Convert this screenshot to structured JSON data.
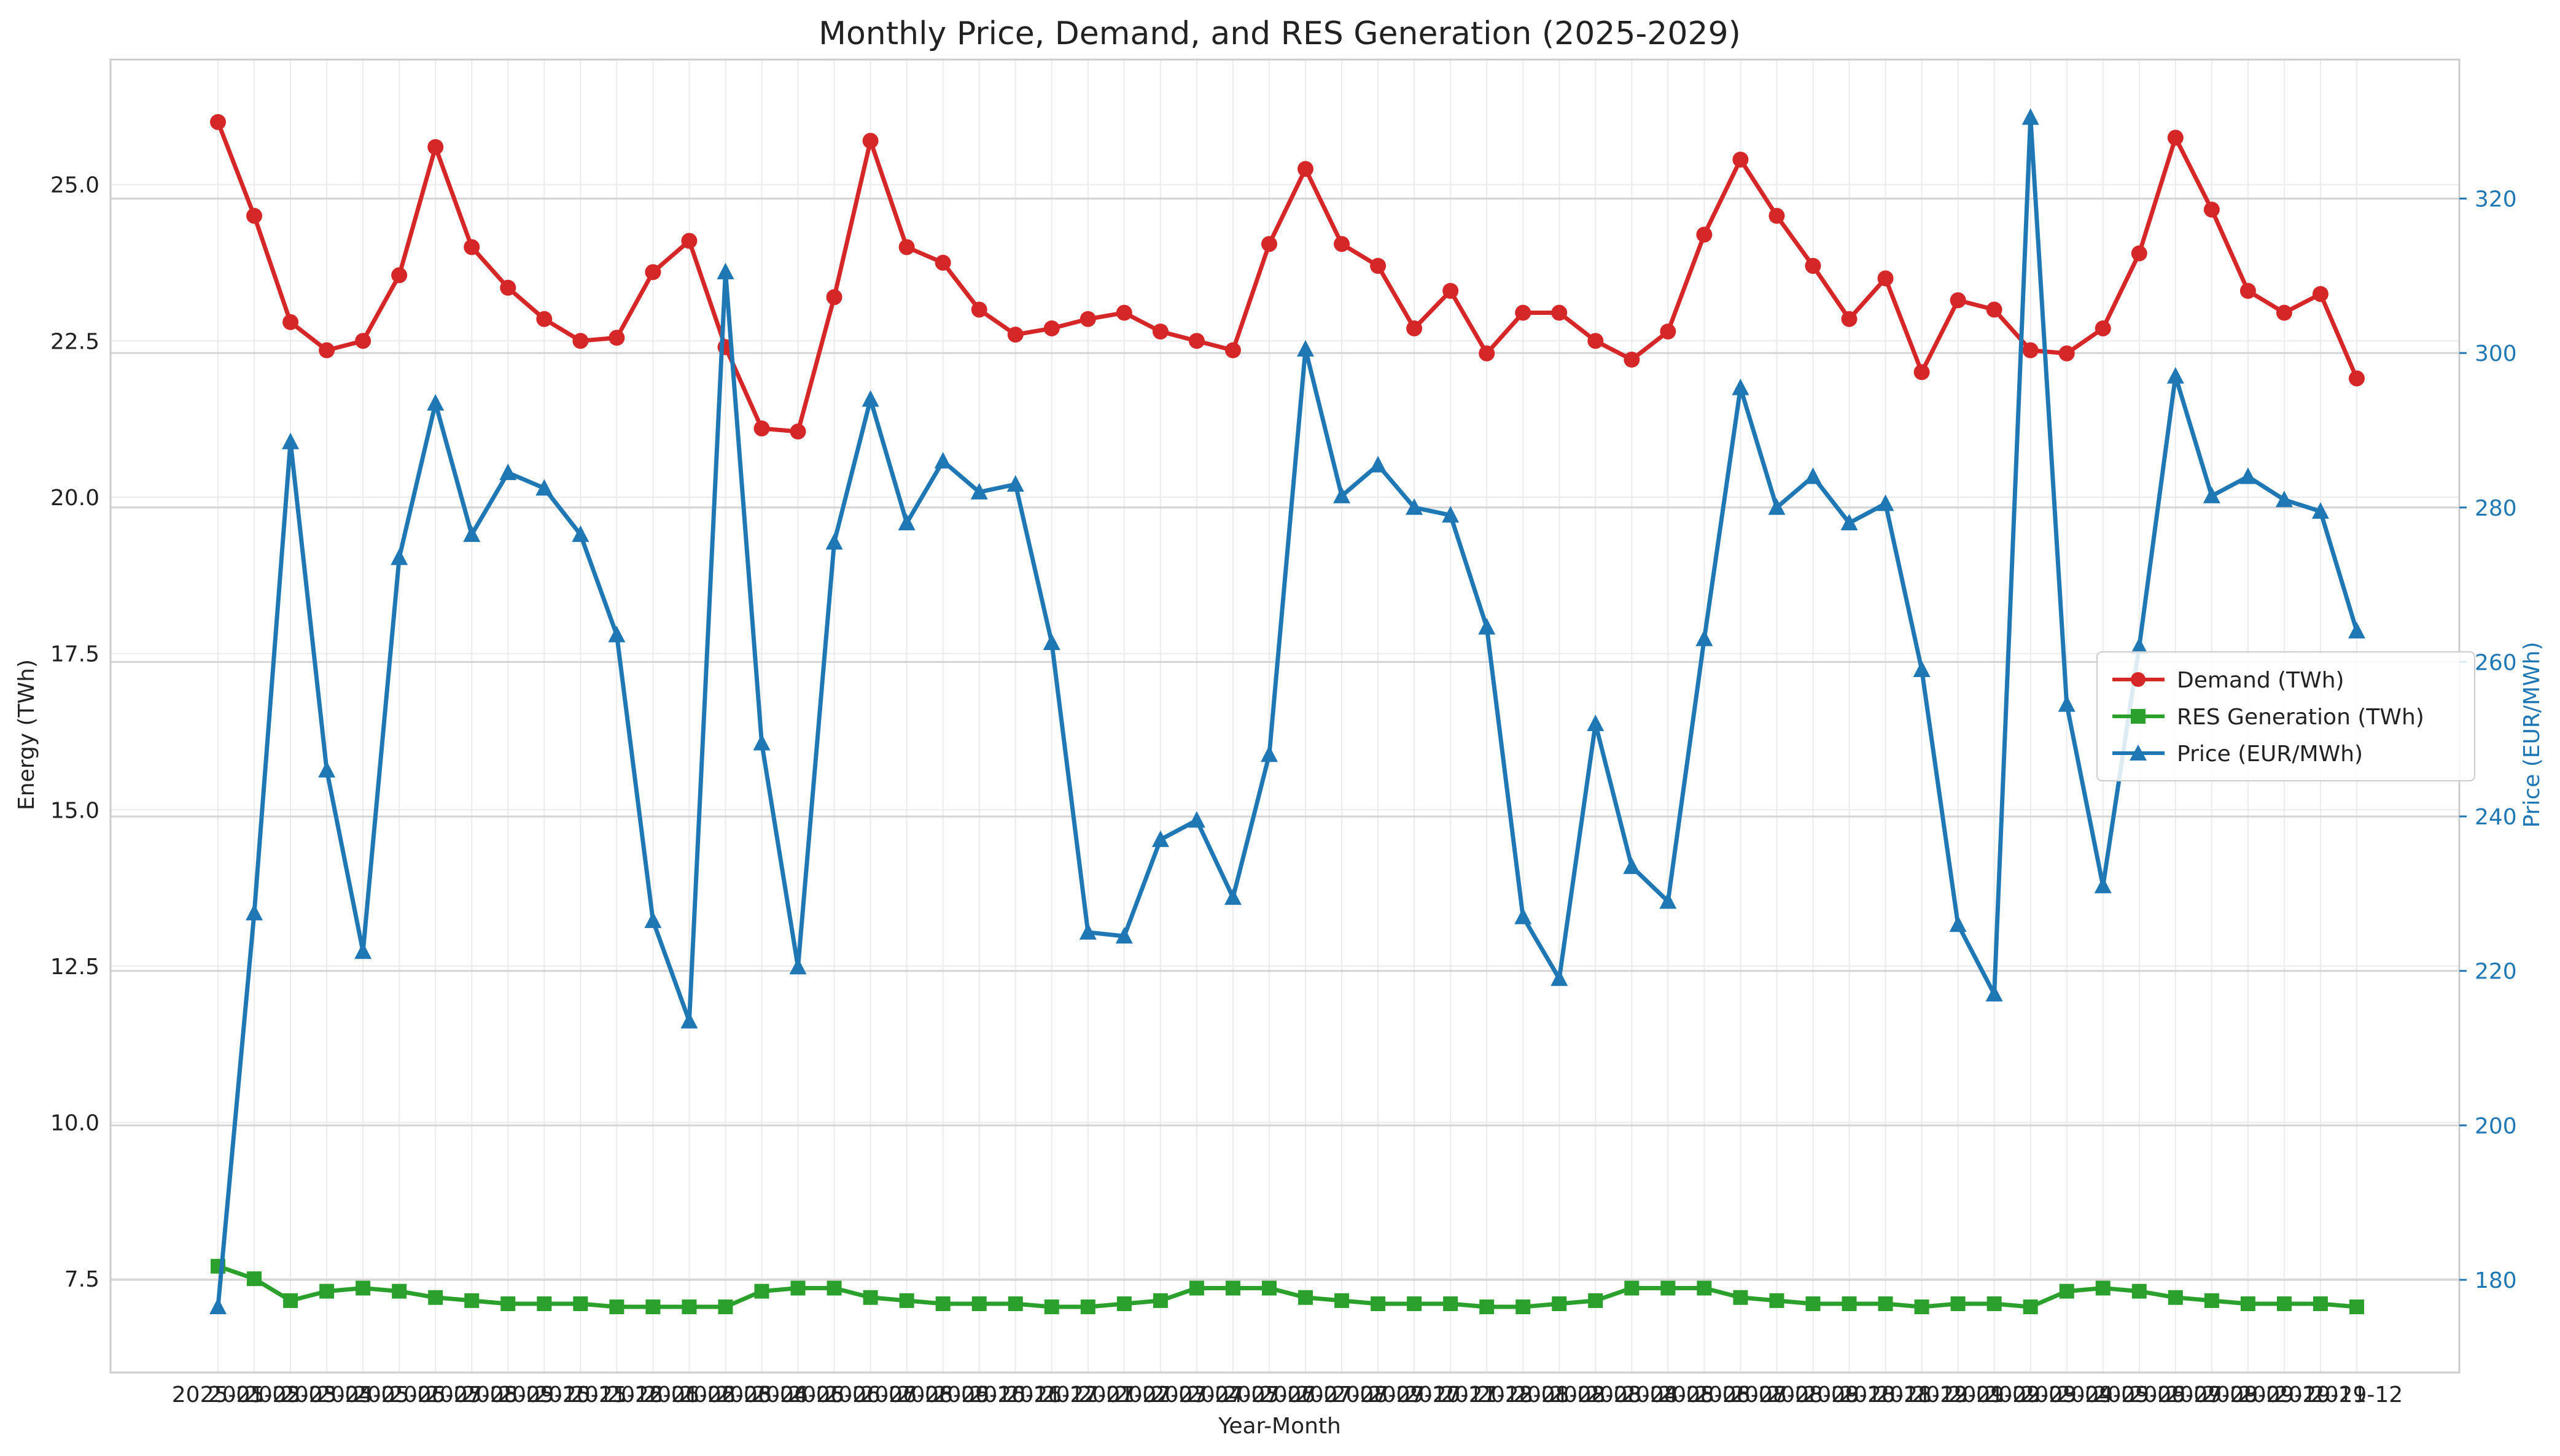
{
  "chart_data": {
    "type": "line",
    "title": "Monthly Price, Demand, and RES Generation (2025-2029)",
    "xlabel": "Year-Month",
    "ylabel_left": "Energy (TWh)",
    "ylabel_right": "Price (EUR/MWh)",
    "ylim_left": [
      6.0,
      27.0
    ],
    "ylim_right": [
      168,
      338
    ],
    "yticks_left": [
      "7.5",
      "10.0",
      "12.5",
      "15.0",
      "17.5",
      "20.0",
      "22.5",
      "25.0"
    ],
    "yticks_right": [
      "180",
      "200",
      "220",
      "240",
      "260",
      "280",
      "300",
      "320"
    ],
    "x_first_label": "2025-01",
    "x_last_label": "2029-12",
    "grid": true,
    "legend_placement": "center-right",
    "x": [
      "2025-01",
      "2025-02",
      "2025-03",
      "2025-04",
      "2025-05",
      "2025-06",
      "2025-07",
      "2025-08",
      "2025-09",
      "2025-10",
      "2025-11",
      "2025-12",
      "2026-01",
      "2026-02",
      "2026-03",
      "2026-04",
      "2026-05",
      "2026-06",
      "2026-07",
      "2026-08",
      "2026-09",
      "2026-10",
      "2026-11",
      "2026-12",
      "2027-01",
      "2027-02",
      "2027-03",
      "2027-04",
      "2027-05",
      "2027-06",
      "2027-07",
      "2027-08",
      "2027-09",
      "2027-10",
      "2027-11",
      "2027-12",
      "2028-01",
      "2028-02",
      "2028-03",
      "2028-04",
      "2028-05",
      "2028-06",
      "2028-07",
      "2028-08",
      "2028-09",
      "2028-10",
      "2028-11",
      "2028-12",
      "2029-01",
      "2029-02",
      "2029-03",
      "2029-04",
      "2029-05",
      "2029-06",
      "2029-07",
      "2029-08",
      "2029-09",
      "2029-10",
      "2029-11",
      "2029-12"
    ],
    "series": [
      {
        "name": "Demand (TWh)",
        "axis": "left",
        "color": "#d62728",
        "marker": "circle",
        "values": [
          26.0,
          24.5,
          22.8,
          22.35,
          22.5,
          23.55,
          25.6,
          24.0,
          23.35,
          22.85,
          22.5,
          22.55,
          23.6,
          24.1,
          22.4,
          21.1,
          21.05,
          23.2,
          25.7,
          24.0,
          23.75,
          23.0,
          22.6,
          22.7,
          22.85,
          22.95,
          22.65,
          22.5,
          22.35,
          24.05,
          25.25,
          24.05,
          23.7,
          22.7,
          23.3,
          22.3,
          22.95,
          22.95,
          22.5,
          22.2,
          22.65,
          24.2,
          25.4,
          24.5,
          23.7,
          22.85,
          23.5,
          22.0,
          23.15,
          23.0,
          22.35,
          22.3,
          22.7,
          23.9,
          25.75,
          24.6,
          23.3,
          22.95,
          23.25,
          21.9
        ]
      },
      {
        "name": "RES Generation (TWh)",
        "axis": "left",
        "color": "#2ca02c",
        "marker": "square",
        "values": [
          7.7,
          7.5,
          7.15,
          7.3,
          7.35,
          7.3,
          7.2,
          7.15,
          7.1,
          7.1,
          7.1,
          7.05,
          7.05,
          7.05,
          7.05,
          7.3,
          7.35,
          7.35,
          7.2,
          7.15,
          7.1,
          7.1,
          7.1,
          7.05,
          7.05,
          7.1,
          7.15,
          7.35,
          7.35,
          7.35,
          7.2,
          7.15,
          7.1,
          7.1,
          7.1,
          7.05,
          7.05,
          7.1,
          7.15,
          7.35,
          7.35,
          7.35,
          7.2,
          7.15,
          7.1,
          7.1,
          7.1,
          7.05,
          7.1,
          7.1,
          7.05,
          7.3,
          7.35,
          7.3,
          7.2,
          7.15,
          7.1,
          7.1,
          7.1,
          7.05
        ]
      },
      {
        "name": "Price (EUR/MWh)",
        "axis": "right",
        "color": "#1f77b4",
        "marker": "triangle",
        "values": [
          176.5,
          227.5,
          288.5,
          246,
          222.5,
          273.5,
          293.5,
          276.5,
          284.5,
          282.5,
          276.5,
          263.5,
          226.5,
          213.5,
          310.5,
          249.5,
          220.5,
          275.5,
          294,
          278,
          286,
          282,
          283,
          262.5,
          225,
          224.5,
          237,
          239.5,
          229.5,
          248,
          300.5,
          281.5,
          285.5,
          280,
          279,
          264.5,
          227,
          219,
          252,
          233.5,
          229,
          263,
          295.5,
          280,
          284,
          278,
          280.5,
          259,
          226,
          217,
          330.5,
          254.5,
          231,
          262,
          297,
          281.5,
          284,
          281,
          279.5,
          264
        ]
      }
    ]
  }
}
